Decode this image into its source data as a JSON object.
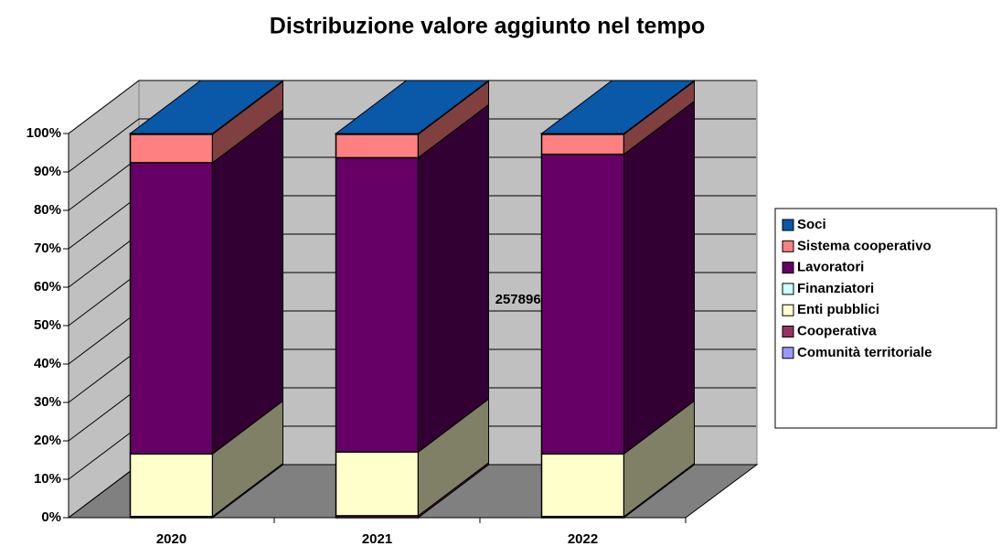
{
  "chart_data": {
    "type": "bar3d_stacked_percent",
    "title": "Distribuzione valore aggiunto nel tempo",
    "categories": [
      "2020",
      "2021",
      "2022"
    ],
    "series": [
      {
        "name": "Comunità territoriale",
        "color": "#9999ff",
        "values": [
          0,
          0,
          0
        ]
      },
      {
        "name": "Cooperativa",
        "color": "#993366",
        "values": [
          0.3,
          0.5,
          0.3
        ]
      },
      {
        "name": "Enti pubblici",
        "color": "#ffffcc",
        "values": [
          16.3,
          16.6,
          16.3
        ]
      },
      {
        "name": "Finanziatori",
        "color": "#ccffff",
        "values": [
          0,
          0,
          0
        ]
      },
      {
        "name": "Lavoratori",
        "color": "#660066",
        "values": [
          75.8,
          76.6,
          78
        ]
      },
      {
        "name": "Sistema cooperativo",
        "color": "#ff8080",
        "values": [
          7.4,
          6.1,
          5.2
        ]
      },
      {
        "name": "Soci",
        "color": "#0a58a8",
        "values": [
          0.2,
          0.2,
          0.2
        ]
      }
    ],
    "annotations": [
      "25789640"
    ],
    "ylim": [
      0,
      100
    ],
    "yticks": [
      {
        "value": 0,
        "label": "0%"
      },
      {
        "value": 10,
        "label": "10%"
      },
      {
        "value": 20,
        "label": "20%"
      },
      {
        "value": 30,
        "label": "30%"
      },
      {
        "value": 40,
        "label": "40%"
      },
      {
        "value": 50,
        "label": "50%"
      },
      {
        "value": 60,
        "label": "60%"
      },
      {
        "value": 70,
        "label": "70%"
      },
      {
        "value": 80,
        "label": "80%"
      },
      {
        "value": 90,
        "label": "90%"
      },
      {
        "value": 100,
        "label": "100%"
      }
    ],
    "grid": true
  }
}
